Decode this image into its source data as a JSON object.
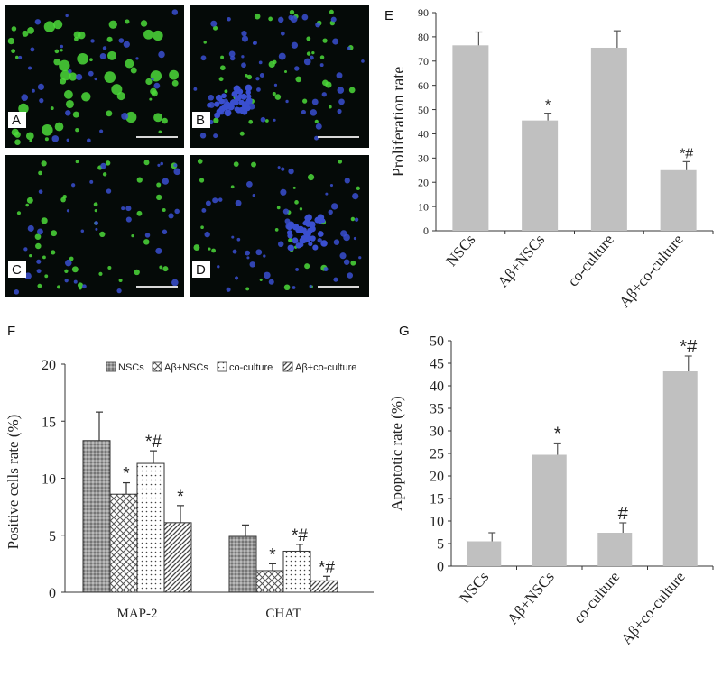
{
  "panels": {
    "micro": [
      {
        "letter": "A"
      },
      {
        "letter": "B"
      },
      {
        "letter": "C"
      },
      {
        "letter": "D"
      }
    ],
    "e_letter": "E",
    "f_letter": "F",
    "g_letter": "G"
  },
  "colors": {
    "micro_bg": "#050a08",
    "cell_green": "#4cd93a",
    "cell_blue": "#3a4fd0",
    "bar_gray": "#c0c0c0",
    "scale_bar": "#d8d8d8"
  },
  "chart_data": [
    {
      "id": "E",
      "type": "bar",
      "categories": [
        "NSCs",
        "Aβ+NSCs",
        "co-culture",
        "Aβ+co-culture"
      ],
      "values": [
        76.5,
        45.5,
        75.5,
        25
      ],
      "errors": [
        5.5,
        3,
        7,
        3.5
      ],
      "significance": [
        "",
        "*",
        "",
        "*#"
      ],
      "title": "",
      "xlabel": "",
      "ylabel": "Proliferation rate",
      "ylim": [
        0,
        90
      ],
      "yticks": [
        0,
        10,
        20,
        30,
        40,
        50,
        60,
        70,
        80,
        90
      ],
      "grid": false
    },
    {
      "id": "F",
      "type": "bar",
      "categories": [
        "MAP-2",
        "CHAT"
      ],
      "series": [
        {
          "name": "NSCs",
          "values": [
            13.3,
            4.9
          ],
          "errors": [
            2.5,
            1.0
          ],
          "significance": [
            "",
            ""
          ],
          "pattern": "dots"
        },
        {
          "name": "Aβ+NSCs",
          "values": [
            8.6,
            1.9
          ],
          "errors": [
            1.0,
            0.6
          ],
          "significance": [
            "*",
            "*"
          ],
          "pattern": "crosshatch"
        },
        {
          "name": "co-culture",
          "values": [
            11.3,
            3.6
          ],
          "errors": [
            1.1,
            0.6
          ],
          "significance": [
            "*#",
            "*#"
          ],
          "pattern": "sparse-dots"
        },
        {
          "name": "Aβ+co-culture",
          "values": [
            6.1,
            1.0
          ],
          "errors": [
            1.5,
            0.4
          ],
          "significance": [
            "*",
            "*#"
          ],
          "pattern": "diagonal"
        }
      ],
      "title": "",
      "xlabel": "",
      "ylabel": "Positive  cells rate (%)",
      "ylim": [
        0,
        20
      ],
      "yticks": [
        0,
        5,
        10,
        15,
        20
      ],
      "legend": "top",
      "grid": false
    },
    {
      "id": "G",
      "type": "bar",
      "categories": [
        "NSCs",
        "Aβ+NSCs",
        "co-culture",
        "Aβ+co-culture"
      ],
      "values": [
        5.5,
        24.7,
        7.4,
        43.2
      ],
      "errors": [
        1.9,
        2.6,
        2.2,
        3.4
      ],
      "significance": [
        "",
        "*",
        "#",
        "*#"
      ],
      "title": "",
      "xlabel": "",
      "ylabel": "Apoptotic rate (%)",
      "ylim": [
        0,
        50
      ],
      "yticks": [
        0,
        5,
        10,
        15,
        20,
        25,
        30,
        35,
        40,
        45,
        50
      ],
      "grid": false
    }
  ]
}
